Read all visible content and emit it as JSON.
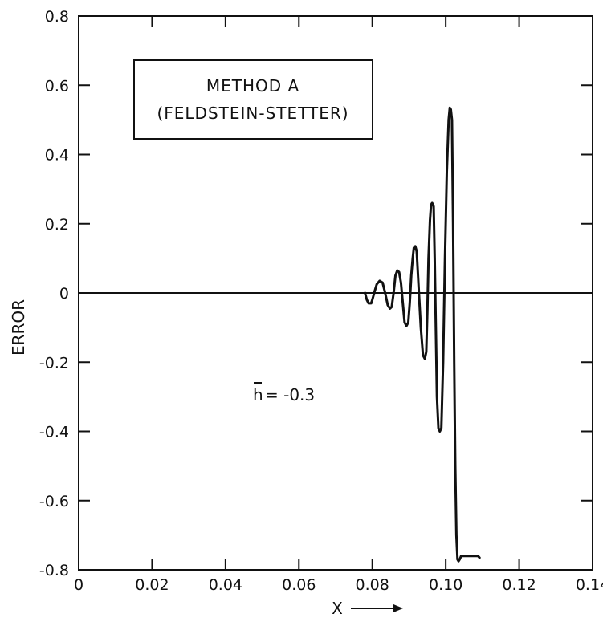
{
  "chart_data": {
    "type": "line",
    "title": "",
    "xlabel": "X",
    "ylabel": "ERROR",
    "xlim": [
      0,
      0.14
    ],
    "ylim": [
      -0.8,
      0.8
    ],
    "x_ticks": [
      0,
      0.02,
      0.04,
      0.06,
      0.08,
      0.1,
      0.12,
      0.14
    ],
    "x_tick_labels": [
      "0",
      "0.02",
      "0.04",
      "0.06",
      "0.08",
      "0.10",
      "0.12",
      "0.14"
    ],
    "y_ticks": [
      0.8,
      0.6,
      0.4,
      0.2,
      0,
      -0.2,
      -0.4,
      -0.6,
      -0.8
    ],
    "y_tick_labels": [
      "0.8",
      "0.6",
      "0.4",
      "0.2",
      "0",
      "-0.2",
      "-0.4",
      "-0.6",
      "-0.8"
    ],
    "grid": false,
    "zero_line": true,
    "legend_box": {
      "line1": "METHOD A",
      "line2": "(FELDSTEIN-STETTER)",
      "placement": "top-left"
    },
    "annotation": {
      "symbol": "h",
      "text": " = -0.3"
    },
    "series": [
      {
        "x": [
          0.0,
          0.078,
          0.0785,
          0.079,
          0.0797,
          0.08,
          0.0805,
          0.0812,
          0.082,
          0.0828,
          0.0835,
          0.0842,
          0.0848,
          0.0853,
          0.0858,
          0.0863,
          0.0868,
          0.0873,
          0.0878,
          0.0883,
          0.0888,
          0.0893,
          0.0898,
          0.0902,
          0.0906,
          0.091,
          0.0913,
          0.0917,
          0.0921,
          0.0926,
          0.0932,
          0.0938,
          0.0943,
          0.0947,
          0.095,
          0.0953,
          0.0957,
          0.096,
          0.0963,
          0.0967,
          0.097,
          0.0973,
          0.0976,
          0.098,
          0.0984,
          0.0988,
          0.0993,
          0.0998,
          0.1003,
          0.1008,
          0.1011,
          0.1014,
          0.1017,
          0.102,
          0.1023,
          0.1026,
          0.1029,
          0.1032,
          0.1035,
          0.1038,
          0.1042,
          0.1047,
          0.1053,
          0.1059,
          0.1064,
          0.1068,
          0.1071,
          0.1074,
          0.1077,
          0.108,
          0.1083,
          0.1085,
          0.1088,
          0.1092
        ],
        "y": [
          0,
          0,
          -0.02,
          -0.03,
          -0.03,
          -0.02,
          0.0,
          0.025,
          0.035,
          0.03,
          0.0,
          -0.035,
          -0.045,
          -0.04,
          0.0,
          0.05,
          0.065,
          0.06,
          0.03,
          -0.03,
          -0.085,
          -0.095,
          -0.085,
          -0.03,
          0.05,
          0.1,
          0.13,
          0.135,
          0.12,
          0.02,
          -0.1,
          -0.18,
          -0.19,
          -0.17,
          -0.05,
          0.1,
          0.21,
          0.255,
          0.26,
          0.25,
          0.1,
          -0.1,
          -0.3,
          -0.39,
          -0.4,
          -0.39,
          -0.2,
          0.1,
          0.35,
          0.5,
          0.535,
          0.53,
          0.5,
          0.2,
          -0.2,
          -0.5,
          -0.7,
          -0.77,
          -0.775,
          -0.77,
          -0.76,
          -0.76,
          -0.76,
          -0.76,
          -0.76,
          -0.76,
          -0.76,
          -0.76,
          -0.76,
          -0.76,
          -0.76,
          -0.76,
          -0.76,
          -0.765
        ]
      }
    ]
  }
}
